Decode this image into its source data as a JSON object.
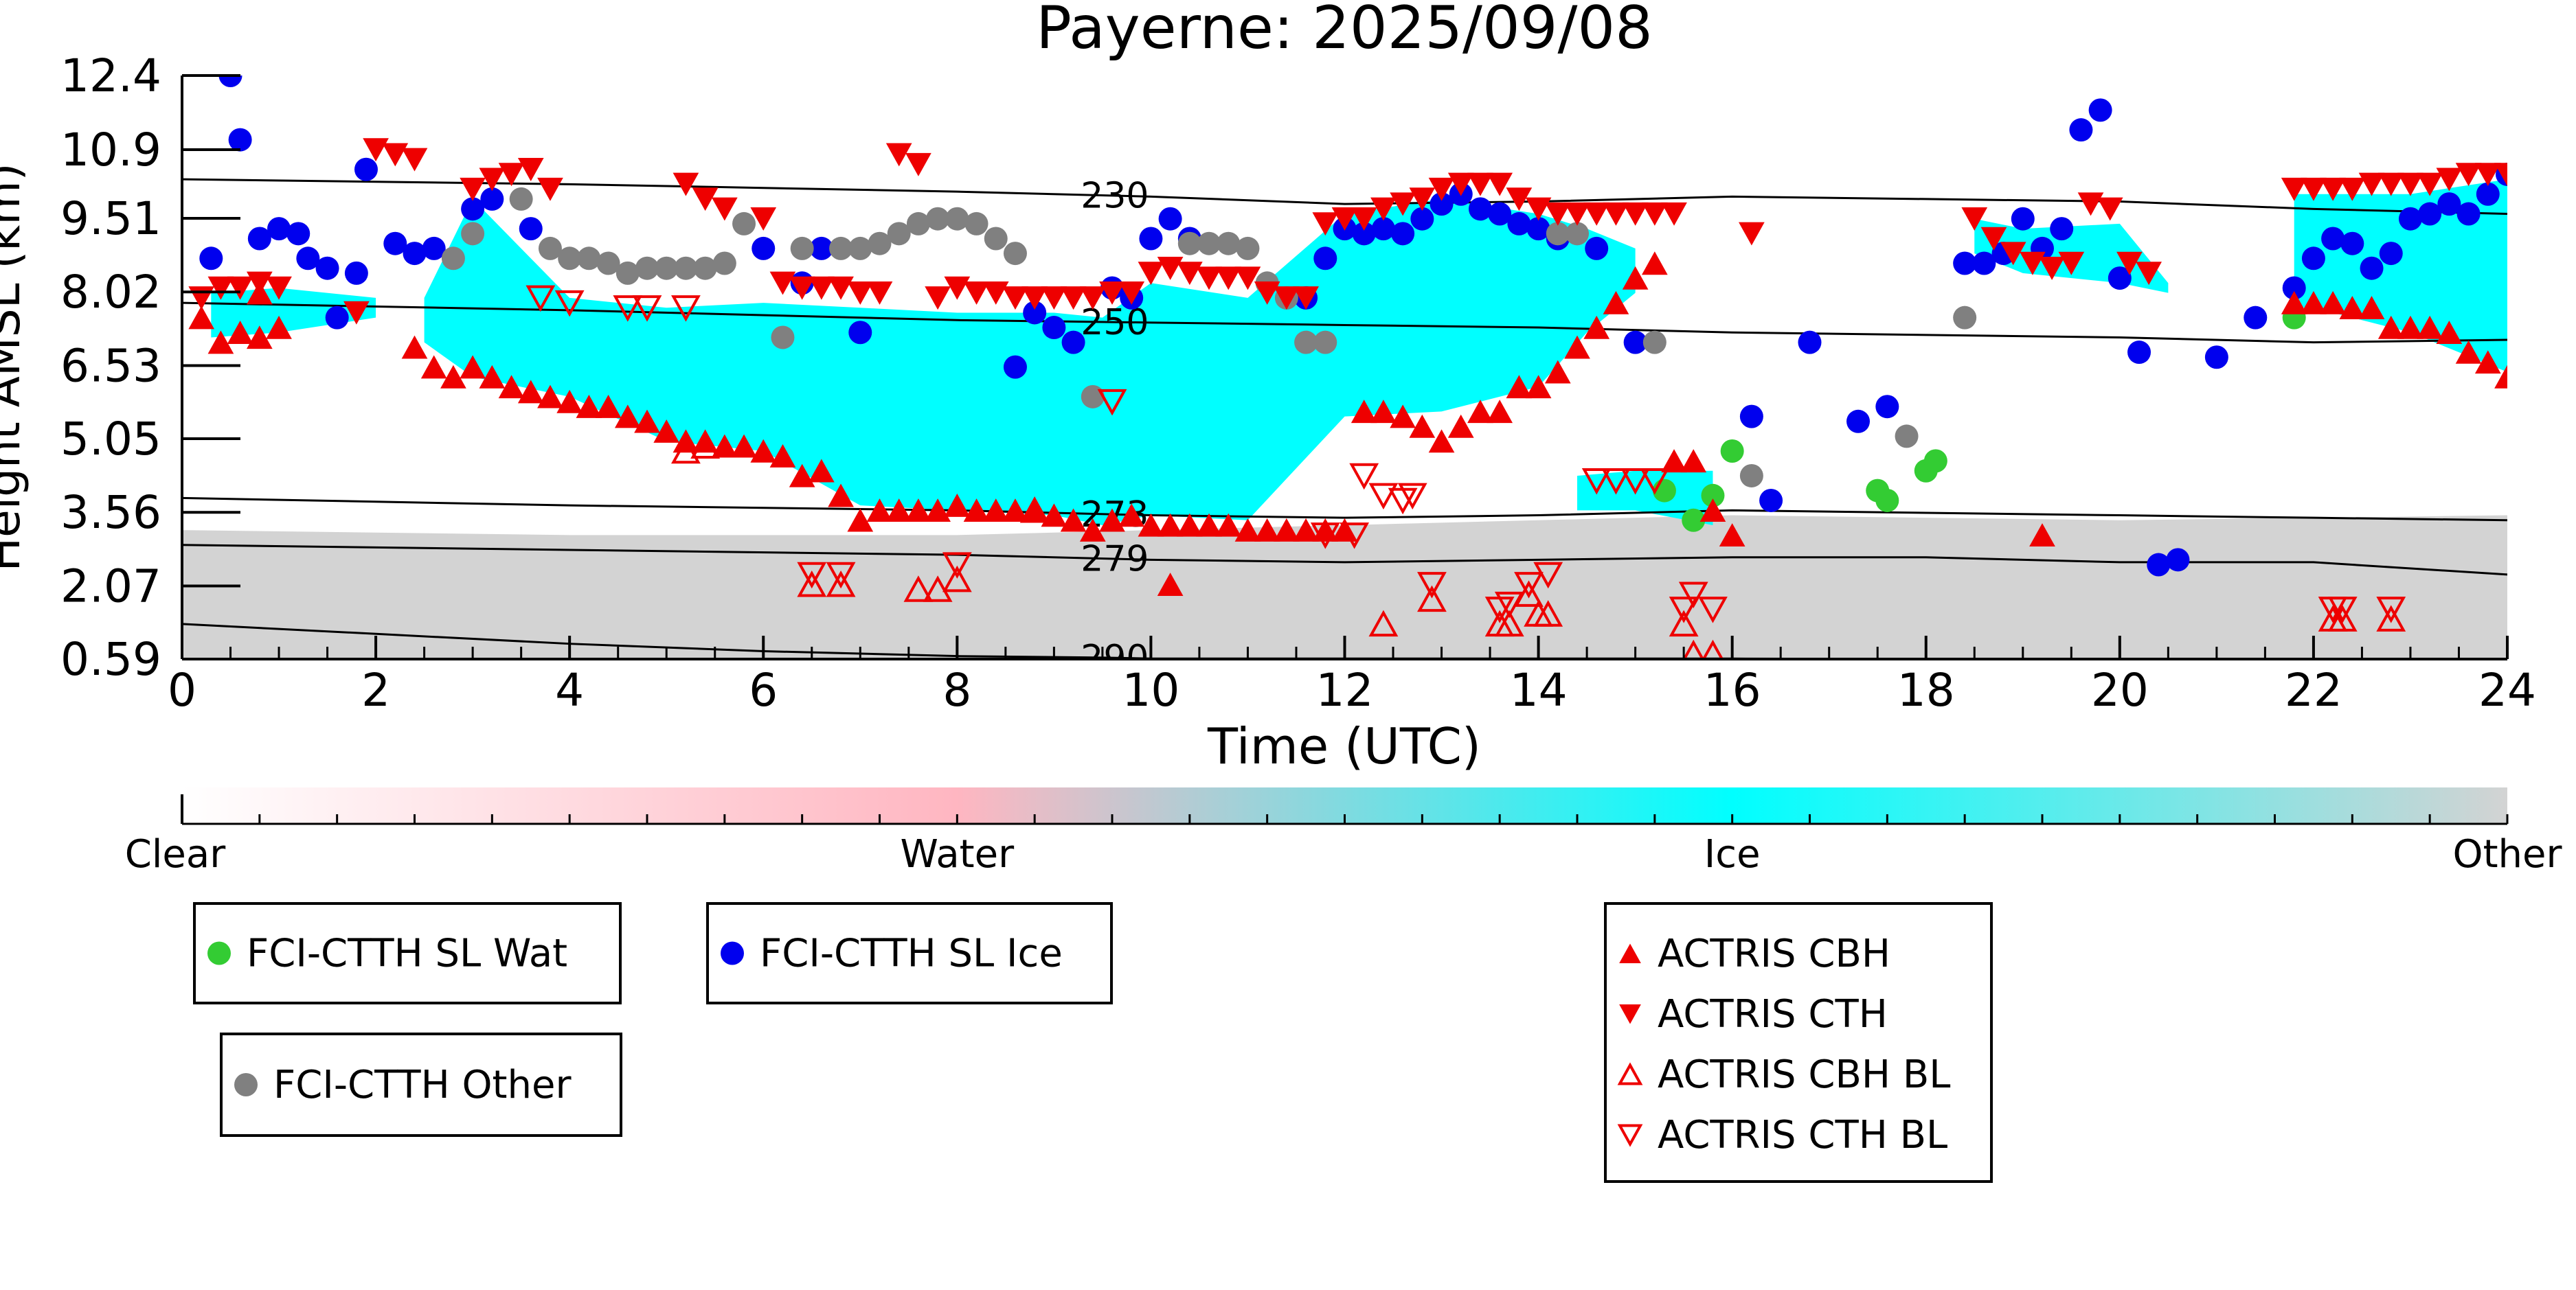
{
  "chart_data": {
    "type": "scatter",
    "title": "Payerne: 2025/09/08",
    "xlabel": "Time (UTC)",
    "ylabel": "Height AMSL (km)",
    "xlim": [
      0,
      24
    ],
    "ylim": [
      0.59,
      12.4
    ],
    "xticks": [
      0,
      2,
      4,
      6,
      8,
      10,
      12,
      14,
      16,
      18,
      20,
      22,
      24
    ],
    "yticks": [
      0.59,
      2.07,
      3.56,
      5.05,
      6.53,
      8.02,
      9.51,
      10.9,
      12.4
    ],
    "ytick_labels": [
      "0.59",
      "2.07",
      "3.56",
      "5.05",
      "6.53",
      "8.02",
      "9.51",
      "10.9",
      "12.4"
    ],
    "grid": false,
    "background_classification": {
      "colorbar_labels": [
        "Clear",
        "Water",
        "Ice",
        "Other"
      ],
      "colors": {
        "clear": "#ffffff",
        "water": "#ffb6c1",
        "ice": "#00ffff",
        "other": "#d3d3d3"
      },
      "ice_regions": [
        {
          "x": [
            2.5,
            3.0,
            4.0,
            5.0,
            6.0,
            7.0,
            8.0,
            9.0,
            9.5,
            10.0,
            11.0,
            12.0,
            13.0,
            14.0,
            14.5,
            15.0
          ],
          "top": [
            7.9,
            9.9,
            7.9,
            7.7,
            7.8,
            7.7,
            7.6,
            7.6,
            7.5,
            8.2,
            7.9,
            9.6,
            9.9,
            9.6,
            9.3,
            8.9
          ],
          "bottom": [
            7.0,
            6.3,
            5.9,
            5.0,
            4.8,
            3.7,
            3.6,
            3.5,
            3.3,
            3.5,
            3.4,
            5.5,
            5.6,
            6.1,
            7.2,
            8.0
          ]
        },
        {
          "x": [
            14.4,
            15.0,
            15.8
          ],
          "top": [
            4.3,
            4.4,
            4.4
          ],
          "bottom": [
            3.6,
            3.6,
            3.3
          ]
        },
        {
          "x": [
            18.5,
            19.0,
            20.0,
            20.5
          ],
          "top": [
            9.5,
            9.3,
            9.4,
            8.2
          ],
          "bottom": [
            8.8,
            8.4,
            8.2,
            8.0
          ]
        },
        {
          "x": [
            21.8,
            22.0,
            23.0,
            24.0
          ],
          "top": [
            10.0,
            10.0,
            10.0,
            10.3
          ],
          "bottom": [
            7.7,
            7.7,
            7.2,
            6.4
          ]
        },
        {
          "x": [
            0.3,
            1.0,
            2.0
          ],
          "top": [
            8.0,
            8.1,
            7.9
          ],
          "bottom": [
            7.1,
            7.2,
            7.5
          ]
        }
      ],
      "other_regions": [
        {
          "x": [
            0,
            4,
            8,
            12,
            16,
            20,
            24
          ],
          "top": [
            3.2,
            3.1,
            3.1,
            3.3,
            3.5,
            3.4,
            3.5
          ],
          "bottom": [
            0.59,
            0.59,
            0.59,
            0.59,
            0.59,
            0.59,
            0.59
          ]
        }
      ]
    },
    "isotherms": [
      {
        "label": "230",
        "x": [
          0,
          4,
          8,
          10,
          12,
          14,
          16,
          18,
          20,
          22,
          24
        ],
        "y": [
          10.3,
          10.2,
          10.05,
          9.95,
          9.8,
          9.85,
          9.95,
          9.9,
          9.85,
          9.7,
          9.6
        ]
      },
      {
        "label": "250",
        "x": [
          0,
          4,
          8,
          10,
          12,
          14,
          16,
          18,
          20,
          22,
          24
        ],
        "y": [
          7.8,
          7.65,
          7.45,
          7.4,
          7.35,
          7.3,
          7.2,
          7.15,
          7.1,
          7.0,
          7.05
        ]
      },
      {
        "label": "273",
        "x": [
          0,
          4,
          8,
          10,
          12,
          14,
          16,
          18,
          20,
          22,
          24
        ],
        "y": [
          3.85,
          3.7,
          3.6,
          3.5,
          3.45,
          3.5,
          3.6,
          3.55,
          3.5,
          3.45,
          3.4
        ]
      },
      {
        "label": "279",
        "x": [
          0,
          4,
          8,
          10,
          12,
          14,
          16,
          18,
          20,
          22,
          24
        ],
        "y": [
          2.9,
          2.8,
          2.7,
          2.6,
          2.55,
          2.6,
          2.65,
          2.65,
          2.55,
          2.55,
          2.3
        ]
      },
      {
        "label": "290",
        "x": [
          0,
          2,
          4,
          6,
          8,
          9.5,
          10,
          12,
          14,
          16,
          18,
          20,
          24
        ],
        "y": [
          1.3,
          1.1,
          0.9,
          0.75,
          0.65,
          0.62,
          0.6,
          0.6,
          0.6,
          0.6,
          0.59,
          0.59,
          0.59
        ]
      }
    ],
    "series": [
      {
        "name": "FCI-CTTH SL Wat",
        "color": "#33cc33",
        "marker": "circle",
        "x": [
          15.3,
          15.6,
          15.8,
          16.0,
          17.5,
          17.6,
          18.0,
          18.1,
          21.8
        ],
        "y": [
          4.0,
          3.4,
          3.9,
          4.8,
          4.0,
          3.8,
          4.4,
          4.6,
          7.5
        ]
      },
      {
        "name": "FCI-CTTH SL Ice",
        "color": "#0000ee",
        "marker": "circle",
        "x": [
          0.3,
          0.5,
          0.6,
          0.8,
          1.0,
          1.2,
          1.3,
          1.5,
          1.6,
          1.8,
          1.9,
          2.2,
          2.4,
          2.6,
          3.0,
          3.2,
          3.6,
          6.0,
          6.4,
          6.6,
          7.0,
          8.6,
          8.8,
          9.0,
          9.2,
          9.6,
          9.8,
          10.0,
          10.2,
          10.4,
          11.6,
          11.8,
          12.0,
          12.2,
          12.4,
          12.6,
          12.8,
          13.0,
          13.2,
          13.4,
          13.6,
          13.8,
          14.0,
          14.2,
          14.6,
          15.0,
          16.2,
          16.4,
          16.8,
          17.3,
          17.6,
          18.4,
          18.6,
          18.8,
          19.0,
          19.2,
          19.4,
          19.6,
          19.8,
          20.0,
          20.2,
          20.4,
          20.6,
          21.0,
          21.4,
          21.8,
          22.0,
          22.2,
          22.4,
          22.6,
          22.8,
          23.0,
          23.2,
          23.4,
          23.6,
          23.8,
          24.0
        ],
        "y": [
          8.7,
          12.4,
          11.1,
          9.1,
          9.3,
          9.2,
          8.7,
          8.5,
          7.5,
          8.4,
          10.5,
          9.0,
          8.8,
          8.9,
          9.7,
          9.9,
          9.3,
          8.9,
          8.2,
          8.9,
          7.2,
          6.5,
          7.6,
          7.3,
          7.0,
          8.1,
          7.9,
          9.1,
          9.5,
          9.1,
          7.9,
          8.7,
          9.3,
          9.2,
          9.3,
          9.2,
          9.5,
          9.8,
          10.0,
          9.7,
          9.6,
          9.4,
          9.3,
          9.1,
          8.9,
          7.0,
          5.5,
          3.8,
          7.0,
          5.4,
          5.7,
          8.6,
          8.6,
          8.8,
          9.5,
          8.9,
          9.3,
          11.3,
          11.7,
          8.3,
          6.8,
          2.5,
          2.6,
          6.7,
          7.5,
          8.1,
          8.7,
          9.1,
          9.0,
          8.5,
          8.8,
          9.5,
          9.6,
          9.8,
          9.6,
          10.0,
          10.4
        ]
      },
      {
        "name": "FCI-CTTH Other",
        "color": "#808080",
        "marker": "circle",
        "x": [
          2.8,
          3.0,
          3.5,
          3.8,
          4.0,
          4.2,
          4.4,
          4.6,
          4.8,
          5.0,
          5.2,
          5.4,
          5.6,
          5.8,
          6.2,
          6.4,
          6.8,
          7.0,
          7.2,
          7.4,
          7.6,
          7.8,
          8.0,
          8.2,
          8.4,
          8.6,
          9.4,
          10.4,
          10.6,
          10.8,
          11.0,
          11.2,
          11.4,
          11.6,
          11.8,
          14.2,
          14.4,
          15.2,
          16.2,
          17.8,
          18.4
        ],
        "y": [
          8.7,
          9.2,
          9.9,
          8.9,
          8.7,
          8.7,
          8.6,
          8.4,
          8.5,
          8.5,
          8.5,
          8.5,
          8.6,
          9.4,
          7.1,
          8.9,
          8.9,
          8.9,
          9.0,
          9.2,
          9.4,
          9.5,
          9.5,
          9.4,
          9.1,
          8.8,
          5.9,
          9.0,
          9.0,
          9.0,
          8.9,
          8.2,
          7.9,
          7.0,
          7.0,
          9.2,
          9.2,
          7.0,
          4.3,
          5.1,
          7.5
        ]
      },
      {
        "name": "ACTRIS CBH",
        "color": "#ee0000",
        "marker": "triangle-up",
        "x": [
          0.2,
          0.4,
          0.6,
          0.8,
          1.0,
          2.4,
          2.6,
          2.8,
          3.0,
          3.2,
          3.4,
          3.6,
          3.8,
          4.0,
          4.2,
          4.4,
          4.6,
          4.8,
          5.0,
          5.2,
          5.4,
          5.6,
          5.8,
          6.0,
          6.2,
          6.4,
          6.6,
          6.8,
          7.0,
          7.2,
          7.4,
          7.6,
          7.8,
          8.0,
          8.2,
          8.4,
          8.6,
          8.8,
          9.0,
          9.2,
          9.4,
          9.6,
          9.8,
          10.0,
          10.2,
          10.4,
          10.6,
          10.8,
          11.0,
          11.2,
          11.4,
          11.6,
          11.8,
          12.0,
          12.2,
          12.4,
          12.6,
          12.8,
          13.0,
          13.2,
          13.4,
          13.6,
          13.8,
          14.0,
          14.2,
          14.4,
          14.6,
          14.8,
          15.0,
          15.2,
          15.4,
          15.6,
          15.8,
          16.0,
          19.2,
          21.8,
          22.0,
          22.2,
          22.4,
          22.6,
          22.8,
          23.0,
          23.2,
          23.4,
          23.6,
          23.8,
          24.0,
          0.8,
          10.2
        ],
        "y": [
          7.5,
          7.0,
          7.2,
          7.1,
          7.3,
          6.9,
          6.5,
          6.3,
          6.5,
          6.3,
          6.1,
          6.0,
          5.9,
          5.8,
          5.7,
          5.7,
          5.5,
          5.4,
          5.2,
          5.0,
          5.0,
          4.9,
          4.9,
          4.8,
          4.7,
          4.3,
          4.4,
          3.9,
          3.4,
          3.6,
          3.6,
          3.6,
          3.6,
          3.7,
          3.6,
          3.6,
          3.6,
          3.6,
          3.5,
          3.4,
          3.2,
          3.4,
          3.5,
          3.3,
          3.3,
          3.3,
          3.3,
          3.3,
          3.2,
          3.2,
          3.2,
          3.2,
          3.2,
          3.2,
          5.6,
          5.6,
          5.5,
          5.3,
          5.0,
          5.3,
          5.6,
          5.6,
          6.1,
          6.1,
          6.4,
          6.9,
          7.3,
          7.8,
          8.3,
          8.6,
          4.6,
          4.6,
          3.6,
          3.1,
          3.1,
          7.8,
          7.8,
          7.8,
          7.7,
          7.7,
          7.3,
          7.3,
          7.3,
          7.2,
          6.8,
          6.6,
          6.3,
          8.0,
          2.1
        ]
      },
      {
        "name": "ACTRIS CTH",
        "color": "#ee0000",
        "marker": "triangle-down",
        "x": [
          0.2,
          0.4,
          0.6,
          0.8,
          1.0,
          1.8,
          2.0,
          2.2,
          2.4,
          3.0,
          3.2,
          3.4,
          3.6,
          3.8,
          5.2,
          5.4,
          5.6,
          6.0,
          6.2,
          6.4,
          6.6,
          6.8,
          7.0,
          7.2,
          7.4,
          7.6,
          7.8,
          8.0,
          8.2,
          8.4,
          8.6,
          8.8,
          9.0,
          9.2,
          9.4,
          9.6,
          9.8,
          10.0,
          10.2,
          10.4,
          10.6,
          10.8,
          11.0,
          11.2,
          11.4,
          11.6,
          11.8,
          12.0,
          12.2,
          12.4,
          12.6,
          12.8,
          13.0,
          13.2,
          13.4,
          13.6,
          13.8,
          14.0,
          14.2,
          14.4,
          14.6,
          14.8,
          15.0,
          15.2,
          15.4,
          16.2,
          18.5,
          18.7,
          18.9,
          19.1,
          19.3,
          19.5,
          19.7,
          19.9,
          20.1,
          20.3,
          21.8,
          22.0,
          22.2,
          22.4,
          22.6,
          22.8,
          23.0,
          23.2,
          23.4,
          23.6,
          23.8,
          24.0
        ],
        "y": [
          7.9,
          8.1,
          8.1,
          8.2,
          8.1,
          7.6,
          10.9,
          10.8,
          10.7,
          10.1,
          10.3,
          10.4,
          10.5,
          10.1,
          10.2,
          9.9,
          9.7,
          9.5,
          8.2,
          8.1,
          8.1,
          8.1,
          8.0,
          8.0,
          10.8,
          10.6,
          7.9,
          8.1,
          8.0,
          8.0,
          7.9,
          7.9,
          7.9,
          7.9,
          7.9,
          8.0,
          8.0,
          8.4,
          8.5,
          8.4,
          8.3,
          8.3,
          8.3,
          8.0,
          7.9,
          7.9,
          9.4,
          9.5,
          9.5,
          9.7,
          9.8,
          9.9,
          10.1,
          10.2,
          10.2,
          10.2,
          9.9,
          9.7,
          9.6,
          9.6,
          9.6,
          9.6,
          9.6,
          9.6,
          9.6,
          9.2,
          9.5,
          9.1,
          8.8,
          8.6,
          8.5,
          8.6,
          9.8,
          9.7,
          8.6,
          8.4,
          10.1,
          10.1,
          10.1,
          10.1,
          10.2,
          10.2,
          10.2,
          10.2,
          10.3,
          10.4,
          10.4,
          10.4
        ]
      },
      {
        "name": "ACTRIS CBH BL",
        "color": "#ee0000",
        "marker": "triangle-up-open",
        "x": [
          6.5,
          6.8,
          7.6,
          7.8,
          8.0,
          12.4,
          12.9,
          13.6,
          13.7,
          13.9,
          14.0,
          14.1,
          15.5,
          15.6,
          15.8,
          22.2,
          22.3,
          22.8,
          8.8,
          5.2,
          5.4
        ],
        "y": [
          2.1,
          2.1,
          2.0,
          2.0,
          2.2,
          1.3,
          1.8,
          1.3,
          1.3,
          1.9,
          1.5,
          1.5,
          1.3,
          0.7,
          0.7,
          1.4,
          1.4,
          1.4,
          3.6,
          4.8,
          4.9
        ],
        "note": ""
      },
      {
        "name": "ACTRIS CTH BL",
        "color": "#ee0000",
        "marker": "triangle-down-open",
        "x": [
          3.7,
          4.0,
          4.6,
          4.8,
          5.2,
          6.5,
          6.8,
          8.0,
          9.6,
          11.8,
          12.1,
          12.2,
          12.4,
          12.6,
          12.7,
          12.9,
          13.6,
          13.7,
          13.9,
          14.1,
          14.6,
          14.8,
          15.0,
          15.2,
          15.5,
          15.6,
          15.8,
          22.2,
          22.3,
          22.8
        ],
        "y": [
          7.9,
          7.8,
          7.7,
          7.7,
          7.7,
          2.3,
          2.3,
          2.5,
          5.8,
          3.1,
          3.1,
          4.3,
          3.9,
          3.8,
          3.9,
          2.1,
          1.6,
          1.7,
          2.1,
          2.3,
          4.2,
          4.2,
          4.2,
          4.2,
          1.6,
          1.9,
          1.6,
          1.6,
          1.6,
          1.6
        ]
      }
    ]
  },
  "colorbar": {
    "labels": [
      "Clear",
      "Water",
      "Ice",
      "Other"
    ],
    "stops": [
      "#ffffff",
      "#ffb6c1",
      "#00ffff",
      "#d3d3d3"
    ]
  },
  "legend_boxes": [
    {
      "entries": [
        {
          "label": "FCI-CTTH SL Wat",
          "color": "#33cc33",
          "marker": "circle"
        }
      ]
    },
    {
      "entries": [
        {
          "label": "FCI-CTTH SL Ice",
          "color": "#0000ee",
          "marker": "circle"
        }
      ]
    },
    {
      "entries": [
        {
          "label": "FCI-CTTH Other",
          "color": "#808080",
          "marker": "circle"
        }
      ]
    },
    {
      "entries": [
        {
          "label": "ACTRIS CBH",
          "color": "#ee0000",
          "marker": "triangle-up"
        },
        {
          "label": "ACTRIS CTH",
          "color": "#ee0000",
          "marker": "triangle-down"
        },
        {
          "label": "ACTRIS CBH BL",
          "color": "#ee0000",
          "marker": "triangle-up-open"
        },
        {
          "label": "ACTRIS CTH BL",
          "color": "#ee0000",
          "marker": "triangle-down-open"
        }
      ]
    }
  ]
}
